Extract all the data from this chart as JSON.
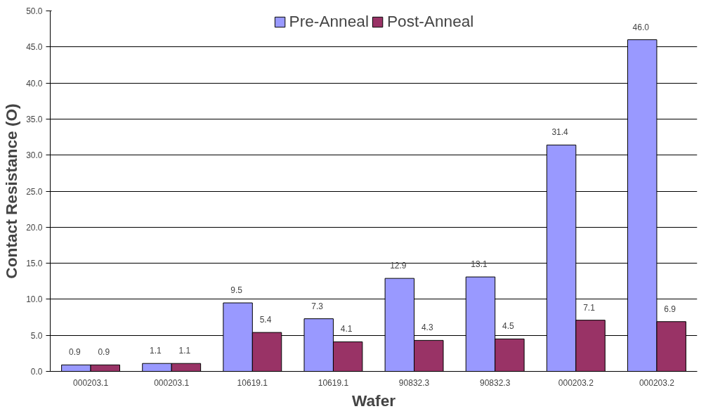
{
  "chart_data": {
    "type": "bar",
    "xlabel": "Wafer",
    "ylabel": "Contact Resistance (O)",
    "categories": [
      "000203.1",
      "000203.1",
      "10619.1",
      "10619.1",
      "90832.3",
      "90832.3",
      "000203.2",
      "000203.2"
    ],
    "series": [
      {
        "name": "Pre-Anneal",
        "color": "#9999ff",
        "values": [
          0.9,
          1.1,
          9.5,
          7.3,
          12.9,
          13.1,
          31.4,
          46.0
        ],
        "value_labels": [
          "0.9",
          "1.1",
          "9.5",
          "7.3",
          "12.9",
          "13.1",
          "31.4",
          "46.0"
        ]
      },
      {
        "name": "Post-Anneal",
        "color": "#993366",
        "values": [
          0.9,
          1.1,
          5.4,
          4.1,
          4.3,
          4.5,
          7.1,
          6.9
        ],
        "value_labels": [
          "0.9",
          "1.1",
          "5.4",
          "4.1",
          "4.3",
          "4.5",
          "7.1",
          "6.9"
        ]
      }
    ],
    "ylim": [
      0,
      50
    ],
    "yticks": [
      {
        "value": 0,
        "label": "0.0"
      },
      {
        "value": 5,
        "label": "5.0"
      },
      {
        "value": 10,
        "label": "10.0"
      },
      {
        "value": 15,
        "label": "15.0"
      },
      {
        "value": 20,
        "label": "20.0"
      },
      {
        "value": 25,
        "label": "25.0"
      },
      {
        "value": 30,
        "label": "30.0"
      },
      {
        "value": 35,
        "label": "35.0"
      },
      {
        "value": 40,
        "label": "40.0"
      },
      {
        "value": 45,
        "label": "45.0"
      },
      {
        "value": 50,
        "label": "50.0"
      }
    ],
    "grid": "y",
    "legend": "top"
  }
}
